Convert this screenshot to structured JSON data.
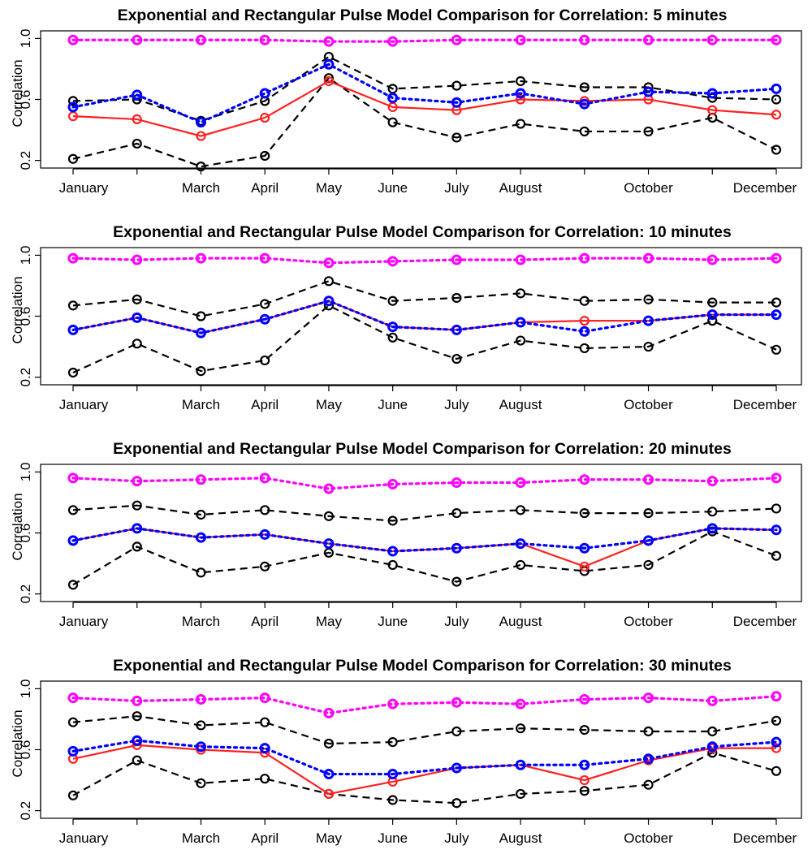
{
  "figure": {
    "categories": [
      "January",
      "",
      "March",
      "April",
      "May",
      "June",
      "July",
      "August",
      "",
      "October",
      "",
      "December"
    ],
    "series_styles": [
      {
        "color": "#000000",
        "line": "dashed"
      },
      {
        "color": "#000000",
        "line": "dashed"
      },
      {
        "color": "#ff2222",
        "line": "solid"
      },
      {
        "color": "#0000ff",
        "line": "dotted"
      },
      {
        "color": "#ff00ff",
        "line": "dotted"
      }
    ],
    "axis": {
      "ylabel": "Correlation",
      "yticks": [
        "0.2",
        "0.6",
        "1.0"
      ],
      "ylim": [
        0.15,
        1.05
      ]
    }
  },
  "chart_data": [
    {
      "type": "line",
      "title": "Exponential and Rectangular Pulse Model Comparison for Correlation: 5 minutes",
      "xlabel": "",
      "ylabel": "Correlation",
      "ylim": [
        0.15,
        1.05
      ],
      "categories": [
        "January",
        "",
        "March",
        "April",
        "May",
        "June",
        "July",
        "August",
        "",
        "October",
        "",
        "December"
      ],
      "series": [
        {
          "values": [
            0.59,
            0.6,
            0.46,
            0.59,
            0.88,
            0.67,
            0.69,
            0.72,
            0.68,
            0.68,
            0.61,
            0.6
          ]
        },
        {
          "values": [
            0.21,
            0.31,
            0.16,
            0.23,
            0.74,
            0.45,
            0.35,
            0.44,
            0.39,
            0.39,
            0.48,
            0.27
          ]
        },
        {
          "values": [
            0.49,
            0.47,
            0.36,
            0.48,
            0.72,
            0.55,
            0.53,
            0.6,
            0.59,
            0.6,
            0.53,
            0.5
          ]
        },
        {
          "values": [
            0.55,
            0.63,
            0.45,
            0.64,
            0.83,
            0.61,
            0.58,
            0.64,
            0.57,
            0.65,
            0.64,
            0.67
          ]
        },
        {
          "values": [
            0.99,
            0.99,
            0.99,
            0.99,
            0.98,
            0.98,
            0.99,
            0.99,
            0.99,
            0.99,
            0.99,
            0.99
          ]
        }
      ]
    },
    {
      "type": "line",
      "title": "Exponential and Rectangular Pulse Model Comparison for Correlation: 10 minutes",
      "xlabel": "",
      "ylabel": "Correlation",
      "ylim": [
        0.15,
        1.05
      ],
      "categories": [
        "January",
        "",
        "March",
        "April",
        "May",
        "June",
        "July",
        "August",
        "",
        "October",
        "",
        "December"
      ],
      "series": [
        {
          "values": [
            0.67,
            0.71,
            0.6,
            0.68,
            0.83,
            0.7,
            0.72,
            0.75,
            0.7,
            0.71,
            0.69,
            0.69
          ]
        },
        {
          "values": [
            0.23,
            0.42,
            0.24,
            0.31,
            0.67,
            0.46,
            0.32,
            0.44,
            0.39,
            0.4,
            0.57,
            0.38
          ]
        },
        {
          "values": [
            0.51,
            0.59,
            0.49,
            0.58,
            0.7,
            0.53,
            0.51,
            0.56,
            0.57,
            0.57,
            0.61,
            0.61
          ]
        },
        {
          "values": [
            0.51,
            0.59,
            0.49,
            0.58,
            0.7,
            0.53,
            0.51,
            0.56,
            0.5,
            0.57,
            0.61,
            0.61
          ]
        },
        {
          "values": [
            0.98,
            0.97,
            0.98,
            0.98,
            0.95,
            0.96,
            0.97,
            0.97,
            0.98,
            0.98,
            0.97,
            0.98
          ]
        }
      ]
    },
    {
      "type": "line",
      "title": "Exponential and Rectangular Pulse Model Comparison for Correlation: 20 minutes",
      "xlabel": "",
      "ylabel": "Correlation",
      "ylim": [
        0.15,
        1.05
      ],
      "categories": [
        "January",
        "",
        "March",
        "April",
        "May",
        "June",
        "July",
        "August",
        "",
        "October",
        "",
        "December"
      ],
      "series": [
        {
          "values": [
            0.75,
            0.78,
            0.72,
            0.75,
            0.71,
            0.68,
            0.73,
            0.75,
            0.73,
            0.73,
            0.74,
            0.76
          ]
        },
        {
          "values": [
            0.26,
            0.51,
            0.34,
            0.38,
            0.47,
            0.39,
            0.28,
            0.39,
            0.35,
            0.39,
            0.61,
            0.45
          ]
        },
        {
          "values": [
            0.55,
            0.63,
            0.57,
            0.59,
            0.53,
            0.48,
            0.5,
            0.53,
            0.38,
            0.55,
            0.63,
            0.62
          ]
        },
        {
          "values": [
            0.55,
            0.63,
            0.57,
            0.59,
            0.53,
            0.48,
            0.5,
            0.53,
            0.5,
            0.55,
            0.63,
            0.62
          ]
        },
        {
          "values": [
            0.96,
            0.94,
            0.95,
            0.96,
            0.89,
            0.92,
            0.93,
            0.93,
            0.95,
            0.95,
            0.94,
            0.96
          ]
        }
      ]
    },
    {
      "type": "line",
      "title": "Exponential and Rectangular Pulse Model Comparison for Correlation: 30 minutes",
      "xlabel": "",
      "ylabel": "Correlation",
      "ylim": [
        0.15,
        1.05
      ],
      "categories": [
        "January",
        "",
        "March",
        "April",
        "May",
        "June",
        "July",
        "August",
        "",
        "October",
        "",
        "December"
      ],
      "series": [
        {
          "values": [
            0.78,
            0.82,
            0.76,
            0.78,
            0.64,
            0.65,
            0.72,
            0.74,
            0.73,
            0.72,
            0.72,
            0.79
          ]
        },
        {
          "values": [
            0.3,
            0.53,
            0.38,
            0.41,
            0.31,
            0.27,
            0.25,
            0.31,
            0.33,
            0.37,
            0.58,
            0.46
          ]
        },
        {
          "values": [
            0.54,
            0.63,
            0.6,
            0.58,
            0.31,
            0.39,
            0.48,
            0.5,
            0.4,
            0.53,
            0.61,
            0.61
          ]
        },
        {
          "values": [
            0.59,
            0.66,
            0.62,
            0.61,
            0.44,
            0.44,
            0.48,
            0.5,
            0.5,
            0.54,
            0.62,
            0.65
          ]
        },
        {
          "values": [
            0.94,
            0.92,
            0.93,
            0.94,
            0.84,
            0.9,
            0.91,
            0.9,
            0.93,
            0.94,
            0.92,
            0.95
          ]
        }
      ]
    }
  ]
}
